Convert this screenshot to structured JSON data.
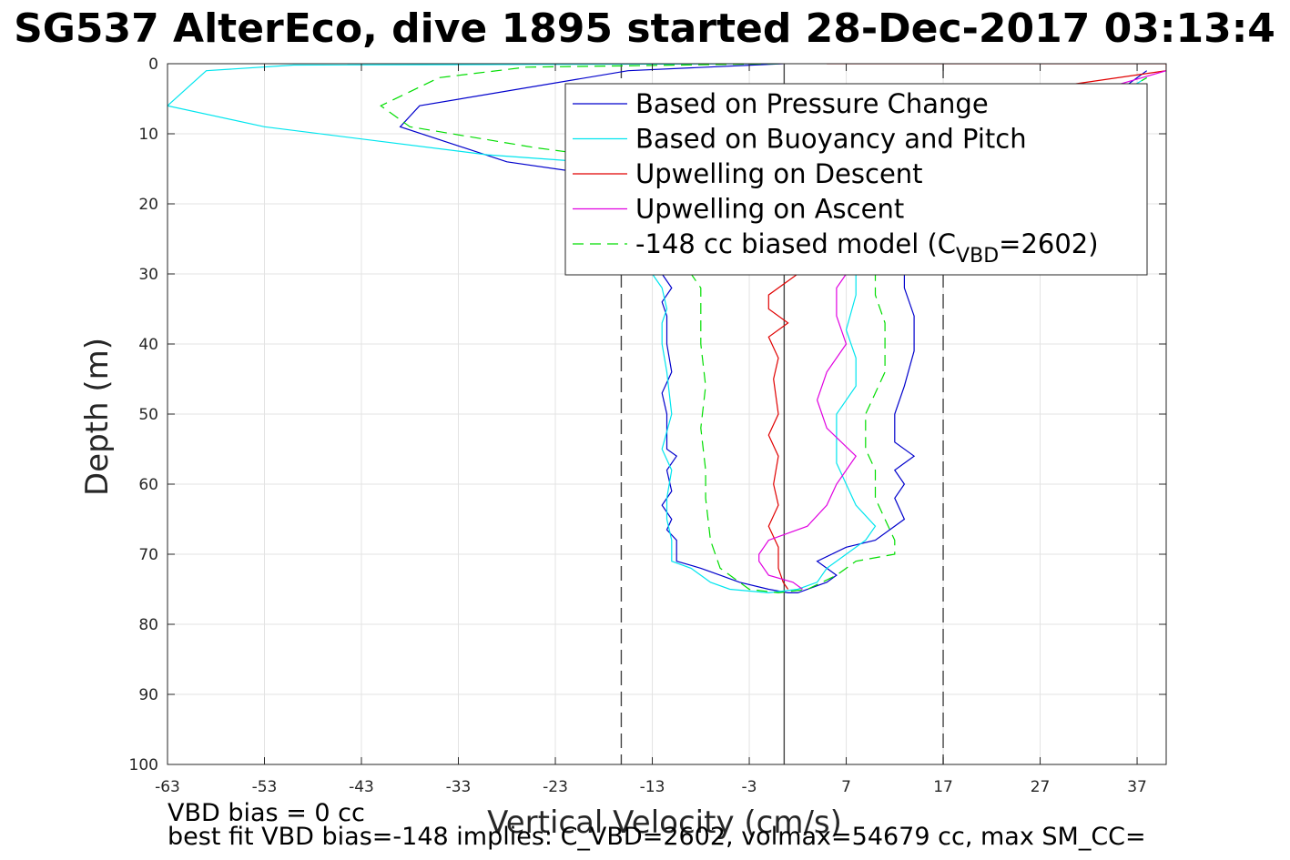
{
  "title": "SG537 AlterEco, dive 1895 started 28-Dec-2017 03:13:4",
  "footer": {
    "line1": "VBD bias = 0 cc",
    "line2": "best fit VBD bias=-148 implies: C_VBD=2602, volmax=54679 cc, max SM_CC="
  },
  "chart_data": {
    "type": "line",
    "xlabel": "Vertical Velocity (cm/s)",
    "ylabel": "Depth (m)",
    "xlim": [
      -63,
      40
    ],
    "ylim": [
      0,
      100
    ],
    "y_reversed": true,
    "grid": true,
    "xticks": [
      -63,
      -53,
      -43,
      -33,
      -23,
      -13,
      -3,
      7,
      17,
      27,
      37
    ],
    "xtick_labels": [
      "-63",
      "-53",
      "-43",
      "-33",
      "-23",
      "-13",
      "-3",
      "7",
      "17",
      "27",
      "37"
    ],
    "yticks": [
      0,
      10,
      20,
      30,
      40,
      50,
      60,
      70,
      80,
      90,
      100
    ],
    "ytick_labels": [
      "0",
      "10",
      "20",
      "30",
      "40",
      "50",
      "60",
      "70",
      "80",
      "90",
      "100"
    ],
    "legend": {
      "position": "top-right",
      "entries": [
        {
          "label": "Based on Pressure Change",
          "color": "#0000cc",
          "dash": "solid"
        },
        {
          "label": "Based on Buoyancy and Pitch",
          "color": "#00e5ee",
          "dash": "solid"
        },
        {
          "label": "Upwelling on Descent",
          "color": "#e00000",
          "dash": "solid"
        },
        {
          "label": "Upwelling on Ascent",
          "color": "#e000e0",
          "dash": "solid"
        },
        {
          "label_main": "-148 cc biased model (C",
          "label_sub": "VBD",
          "label_end": "=2602)",
          "color": "#00dd00",
          "dash": "dashed"
        }
      ]
    },
    "reference_lines": [
      {
        "x": -16.2,
        "style": "dashed",
        "color": "#444444"
      },
      {
        "x": 0.6,
        "style": "solid",
        "color": "#444444"
      },
      {
        "x": 17.0,
        "style": "dashed",
        "color": "#444444"
      }
    ],
    "series": [
      {
        "name": "Based on Pressure Change",
        "color": "#0000cc",
        "dash": "solid",
        "points": [
          [
            0.5,
            0
          ],
          [
            -15.5,
            1
          ],
          [
            -37,
            6
          ],
          [
            -39,
            9
          ],
          [
            -28,
            14
          ],
          [
            -18,
            16
          ],
          [
            -12,
            30
          ],
          [
            -11,
            32
          ],
          [
            -12,
            34
          ],
          [
            -11.5,
            36
          ],
          [
            -11.5,
            40
          ],
          [
            -11,
            44
          ],
          [
            -12,
            47
          ],
          [
            -11.5,
            50
          ],
          [
            -11.5,
            55
          ],
          [
            -10.5,
            56
          ],
          [
            -11.5,
            58
          ],
          [
            -11,
            61
          ],
          [
            -12,
            63
          ],
          [
            -11,
            65
          ],
          [
            -11.5,
            66.5
          ],
          [
            -10.5,
            68
          ],
          [
            -10.5,
            71
          ],
          [
            -8,
            72
          ],
          [
            -6,
            73
          ],
          [
            -4,
            74
          ],
          [
            -1,
            75
          ],
          [
            1,
            75.5
          ],
          [
            2,
            75.5
          ],
          [
            5,
            74
          ],
          [
            6,
            73
          ],
          [
            4,
            71
          ],
          [
            7,
            69
          ],
          [
            10,
            68
          ],
          [
            13,
            65
          ],
          [
            12,
            62
          ],
          [
            13,
            60
          ],
          [
            12,
            58
          ],
          [
            14,
            56
          ],
          [
            12,
            54
          ],
          [
            12,
            50
          ],
          [
            13,
            46
          ],
          [
            14,
            41
          ],
          [
            14,
            36
          ],
          [
            13,
            32
          ],
          [
            13,
            30
          ],
          [
            15,
            20
          ],
          [
            20,
            12
          ],
          [
            30,
            7
          ],
          [
            36,
            3
          ],
          [
            38,
            1
          ]
        ]
      },
      {
        "name": "Based on Buoyancy and Pitch",
        "color": "#00e5ee",
        "dash": "solid",
        "points": [
          [
            0,
            0
          ],
          [
            -50,
            0.2
          ],
          [
            -59,
            1
          ],
          [
            -63,
            6
          ],
          [
            -53,
            9
          ],
          [
            -30,
            13
          ],
          [
            -20,
            14
          ],
          [
            -13,
            30
          ],
          [
            -12,
            32
          ],
          [
            -11.5,
            35
          ],
          [
            -12,
            37
          ],
          [
            -12,
            40
          ],
          [
            -11.5,
            44
          ],
          [
            -11,
            50
          ],
          [
            -12,
            55
          ],
          [
            -11,
            58
          ],
          [
            -11.5,
            62
          ],
          [
            -11.5,
            65
          ],
          [
            -11,
            68
          ],
          [
            -11,
            71
          ],
          [
            -9,
            72
          ],
          [
            -7,
            74
          ],
          [
            -5,
            75
          ],
          [
            -1,
            75.5
          ],
          [
            2,
            75
          ],
          [
            4,
            74
          ],
          [
            5,
            72
          ],
          [
            7,
            70
          ],
          [
            9,
            68
          ],
          [
            10,
            66
          ],
          [
            8,
            63
          ],
          [
            7,
            60
          ],
          [
            6,
            57
          ],
          [
            6,
            53
          ],
          [
            6,
            50
          ],
          [
            8,
            46
          ],
          [
            8,
            42
          ],
          [
            7,
            38
          ],
          [
            8,
            33
          ],
          [
            8,
            30
          ],
          [
            12,
            20
          ],
          [
            22,
            12
          ],
          [
            33,
            6
          ],
          [
            38,
            2
          ]
        ]
      },
      {
        "name": "Upwelling on Descent",
        "color": "#e00000",
        "dash": "solid",
        "points": [
          [
            5,
            0
          ],
          [
            40,
            0
          ],
          [
            40,
            1
          ],
          [
            30,
            3
          ],
          [
            20,
            7
          ],
          [
            10,
            13
          ],
          [
            5,
            20
          ],
          [
            3,
            27
          ],
          [
            2,
            30
          ],
          [
            -1,
            33
          ],
          [
            -1,
            35
          ],
          [
            1,
            37
          ],
          [
            -1,
            39
          ],
          [
            0,
            42
          ],
          [
            -0.5,
            45
          ],
          [
            0,
            50
          ],
          [
            -1,
            53
          ],
          [
            0,
            56
          ],
          [
            -0.5,
            60
          ],
          [
            0,
            63
          ],
          [
            -1,
            66
          ],
          [
            0,
            69
          ],
          [
            0,
            72
          ],
          [
            0.5,
            74
          ],
          [
            1,
            75
          ]
        ]
      },
      {
        "name": "Upwelling on Ascent",
        "color": "#e000e0",
        "dash": "solid",
        "points": [
          [
            2.5,
            75
          ],
          [
            1.5,
            74
          ],
          [
            -1,
            73
          ],
          [
            -2,
            71
          ],
          [
            -2,
            70
          ],
          [
            -1,
            68
          ],
          [
            3,
            66
          ],
          [
            5,
            63
          ],
          [
            6,
            60
          ],
          [
            8,
            56
          ],
          [
            5,
            52
          ],
          [
            4,
            48
          ],
          [
            5,
            44
          ],
          [
            7,
            40
          ],
          [
            6,
            36
          ],
          [
            6,
            32
          ],
          [
            8,
            28
          ],
          [
            15,
            15
          ],
          [
            25,
            8
          ],
          [
            35,
            3
          ],
          [
            40,
            1
          ]
        ]
      },
      {
        "name": "-148 cc biased model (CVBD=2602)",
        "color": "#00dd00",
        "dash": "dashed",
        "points": [
          [
            0,
            0
          ],
          [
            -26,
            0.5
          ],
          [
            -35,
            2
          ],
          [
            -41,
            6
          ],
          [
            -38,
            9
          ],
          [
            -25,
            12
          ],
          [
            -14,
            14
          ],
          [
            -9,
            30
          ],
          [
            -8,
            32
          ],
          [
            -8,
            40
          ],
          [
            -7.5,
            46
          ],
          [
            -8,
            52
          ],
          [
            -7.5,
            58
          ],
          [
            -7.5,
            62
          ],
          [
            -7,
            68
          ],
          [
            -6,
            72
          ],
          [
            -3,
            75
          ],
          [
            0,
            75.5
          ],
          [
            3,
            75
          ],
          [
            6,
            73
          ],
          [
            8,
            71
          ],
          [
            12,
            70
          ],
          [
            12,
            68
          ],
          [
            11,
            65
          ],
          [
            10,
            62
          ],
          [
            10,
            58
          ],
          [
            9,
            55
          ],
          [
            9,
            50
          ],
          [
            10,
            47
          ],
          [
            11,
            44
          ],
          [
            11,
            40
          ],
          [
            11,
            37
          ],
          [
            10,
            33
          ],
          [
            10,
            30
          ],
          [
            14,
            20
          ],
          [
            24,
            12
          ],
          [
            33,
            6
          ],
          [
            38,
            2
          ]
        ]
      }
    ]
  }
}
